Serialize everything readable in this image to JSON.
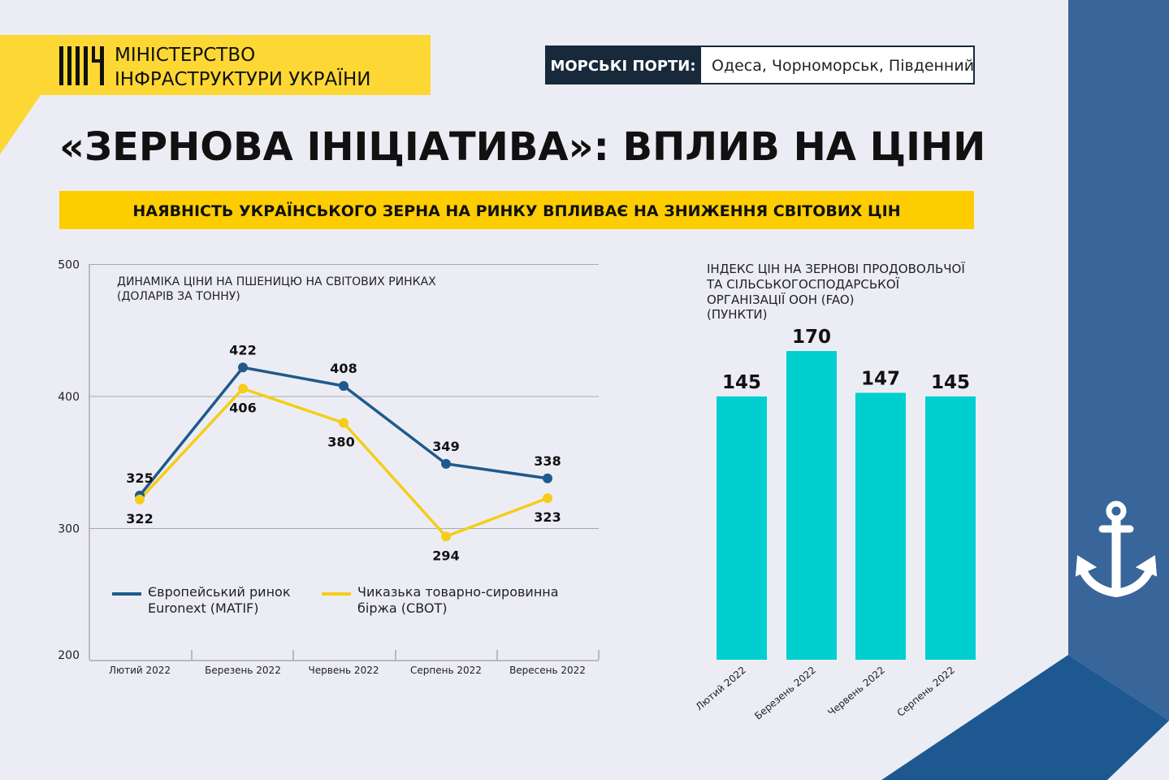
{
  "logo": {
    "line1": "МІНІСТЕРСТВО",
    "line2": "ІНФРАСТРУКТУРИ УКРАЇНИ"
  },
  "ports": {
    "label": "МОРСЬКІ ПОРТИ:",
    "value": "Одеса, Чорноморськ, Південний"
  },
  "title": "«ЗЕРНОВА ІНІЦІАТИВА»: ВПЛИВ НА ЦІНИ",
  "subtitle": "НАЯВНІСТЬ УКРАЇНСЬКОГО ЗЕРНА НА РИНКУ ВПЛИВАЄ НА ЗНИЖЕННЯ СВІТОВИХ ЦІН",
  "colors": {
    "background": "#ecedf4",
    "yellow": "#fecd00",
    "navy": "#1f5a8c",
    "teal": "#00cfcf",
    "panel": "#38659a",
    "band": "#1d5990",
    "dark": "#17293a"
  },
  "icons": {
    "anchor": "anchor-icon"
  },
  "chart_data": [
    {
      "type": "line",
      "title": "ДИНАМІКА ЦІНИ НА ПШЕНИЦЮ НА СВІТОВИХ РИНКАХ",
      "subtitle": "(ДОЛАРІВ ЗА ТОННУ)",
      "categories": [
        "Лютий 2022",
        "Березень 2022",
        "Червень 2022",
        "Серпень 2022",
        "Вересень 2022"
      ],
      "yticks": [
        "500",
        "400",
        "300",
        "200"
      ],
      "ytick_values": [
        500,
        400,
        300,
        200
      ],
      "ylim": [
        200,
        500
      ],
      "grid": true,
      "legend": "bottom-left",
      "series": [
        {
          "name_line1": "Європейський ринок",
          "name_line2": "Euronext (MATIF)",
          "color": "#1f5a8c",
          "values": [
            325,
            422,
            408,
            349,
            338
          ],
          "labels": [
            "325",
            "422",
            "408",
            "349",
            "338"
          ]
        },
        {
          "name_line1": "Чиказька товарно-сировинна",
          "name_line2": "біржа (CBOT)",
          "color": "#f5cd1a",
          "values": [
            322,
            406,
            380,
            294,
            323
          ],
          "labels": [
            "322",
            "406",
            "380",
            "294",
            "323"
          ]
        }
      ]
    },
    {
      "type": "bar",
      "title_lines": [
        "ІНДЕКС ЦІН НА ЗЕРНОВІ ПРОДОВОЛЬЧОЇ",
        "ТА СІЛЬСЬКОГОСПОДАРСЬКОЇ",
        "ОРГАНІЗАЦІЇ ООН (FAO)",
        "(ПУНКТИ)"
      ],
      "categories": [
        "Лютий 2022",
        "Березень 2022",
        "Червень 2022",
        "Серпень 2022"
      ],
      "values": [
        145,
        170,
        147,
        145
      ],
      "labels": [
        "145",
        "170",
        "147",
        "145"
      ],
      "color": "#00cfcf"
    }
  ]
}
